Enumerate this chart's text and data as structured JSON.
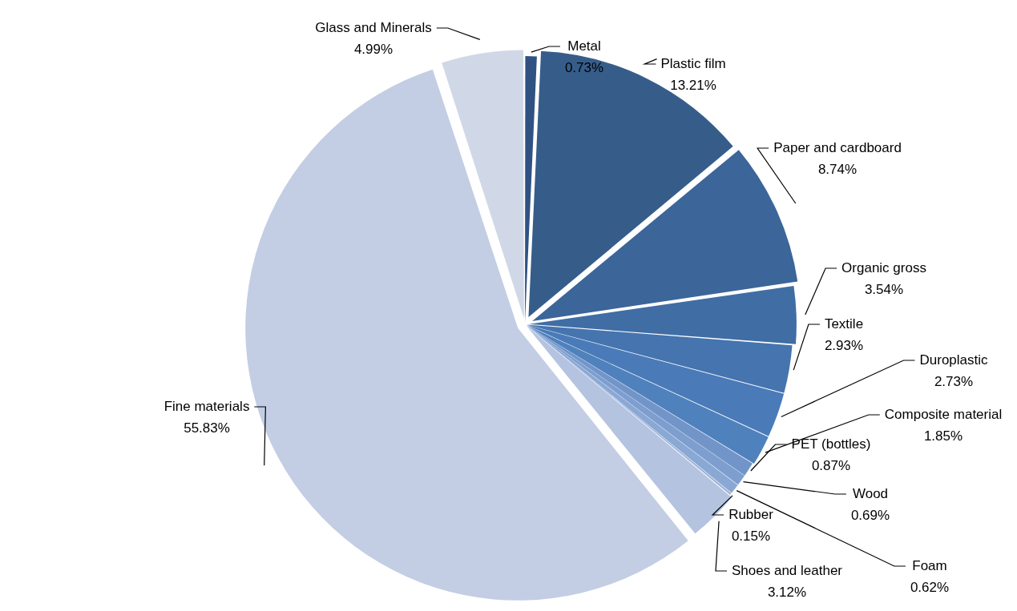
{
  "chart_data": {
    "type": "pie",
    "categories": [
      "Metal",
      "Plastic film",
      "Paper and cardboard",
      "Organic gross",
      "Textile",
      "Duroplastic",
      "Composite material",
      "PET (bottles)",
      "Wood",
      "Foam",
      "Rubber",
      "Shoes and leather",
      "Fine materials",
      "Glass and Minerals"
    ],
    "values": [
      0.73,
      13.21,
      8.74,
      3.54,
      2.93,
      2.73,
      1.85,
      0.87,
      0.69,
      0.62,
      0.15,
      3.12,
      55.83,
      4.99
    ],
    "value_labels": [
      "0.73%",
      "13.21%",
      "8.74%",
      "3.54%",
      "2.93%",
      "2.73%",
      "1.85%",
      "0.87%",
      "0.69%",
      "0.62%",
      "0.15%",
      "3.12%",
      "55.83%",
      "4.99%"
    ],
    "colors": [
      "#2f5282",
      "#365d8a",
      "#3c6599",
      "#416da5",
      "#4574af",
      "#4a7bb8",
      "#4f81bd",
      "#7295c9",
      "#7d9ecf",
      "#8aa8d4",
      "#9fb5db",
      "#b4c3e0",
      "#c3cee4",
      "#d0d8e8"
    ],
    "legend": false
  }
}
